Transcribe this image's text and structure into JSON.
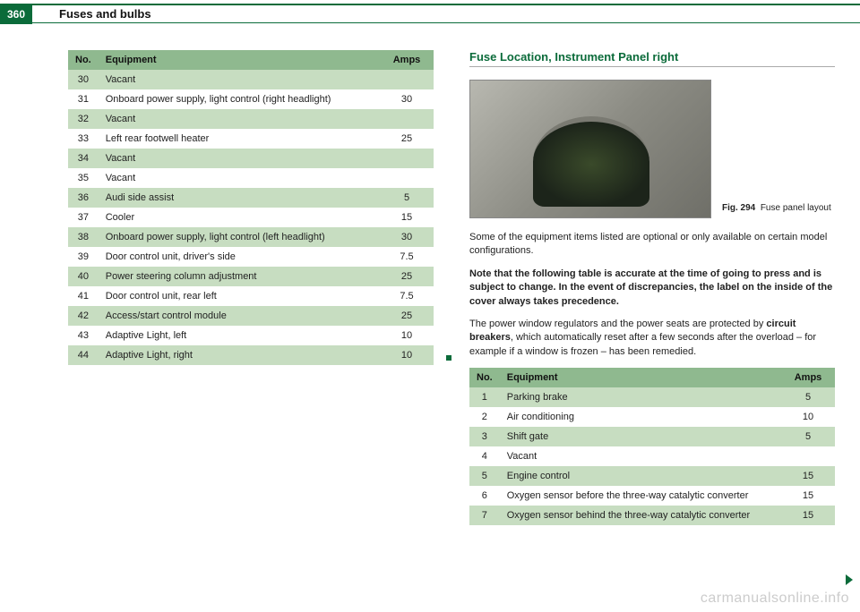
{
  "page_number": "360",
  "chapter": "Fuses and bulbs",
  "left_table": {
    "headers": {
      "no": "No.",
      "equipment": "Equipment",
      "amps": "Amps"
    },
    "rows": [
      {
        "no": "30",
        "equipment": "Vacant",
        "amps": ""
      },
      {
        "no": "31",
        "equipment": "Onboard power supply, light control (right headlight)",
        "amps": "30"
      },
      {
        "no": "32",
        "equipment": "Vacant",
        "amps": ""
      },
      {
        "no": "33",
        "equipment": "Left rear footwell heater",
        "amps": "25"
      },
      {
        "no": "34",
        "equipment": "Vacant",
        "amps": ""
      },
      {
        "no": "35",
        "equipment": "Vacant",
        "amps": ""
      },
      {
        "no": "36",
        "equipment": "Audi side assist",
        "amps": "5"
      },
      {
        "no": "37",
        "equipment": "Cooler",
        "amps": "15"
      },
      {
        "no": "38",
        "equipment": "Onboard power supply, light control (left headlight)",
        "amps": "30"
      },
      {
        "no": "39",
        "equipment": "Door control unit, driver's side",
        "amps": "7.5"
      },
      {
        "no": "40",
        "equipment": "Power steering column adjustment",
        "amps": "25"
      },
      {
        "no": "41",
        "equipment": "Door control unit, rear left",
        "amps": "7.5"
      },
      {
        "no": "42",
        "equipment": "Access/start control module",
        "amps": "25"
      },
      {
        "no": "43",
        "equipment": "Adaptive Light, left",
        "amps": "10"
      },
      {
        "no": "44",
        "equipment": "Adaptive Light, right",
        "amps": "10"
      }
    ]
  },
  "right_section": {
    "heading": "Fuse Location, Instrument Panel right",
    "figure_label_bold": "Fig. 294",
    "figure_label_text": "Fuse panel layout",
    "para1": "Some of the equipment items listed are optional or only available on certain model configurations.",
    "note_bold": "Note that the following table is accurate at the time of going to press and is subject to change. In the event of discrepancies, the label on the inside of the cover always takes precedence.",
    "para2_a": "The power window regulators and the power seats are protected by ",
    "para2_bold": "circuit breakers",
    "para2_b": ", which automatically reset after a few seconds after the overload – for example if a window is frozen – has been remedied."
  },
  "right_table": {
    "headers": {
      "no": "No.",
      "equipment": "Equipment",
      "amps": "Amps"
    },
    "rows": [
      {
        "no": "1",
        "equipment": "Parking brake",
        "amps": "5"
      },
      {
        "no": "2",
        "equipment": "Air conditioning",
        "amps": "10"
      },
      {
        "no": "3",
        "equipment": "Shift gate",
        "amps": "5"
      },
      {
        "no": "4",
        "equipment": "Vacant",
        "amps": ""
      },
      {
        "no": "5",
        "equipment": "Engine control",
        "amps": "15"
      },
      {
        "no": "6",
        "equipment": "Oxygen sensor before the three-way catalytic converter",
        "amps": "15"
      },
      {
        "no": "7",
        "equipment": "Oxygen sensor behind the three-way catalytic converter",
        "amps": "15"
      }
    ]
  },
  "watermark": "carmanualsonline.info"
}
